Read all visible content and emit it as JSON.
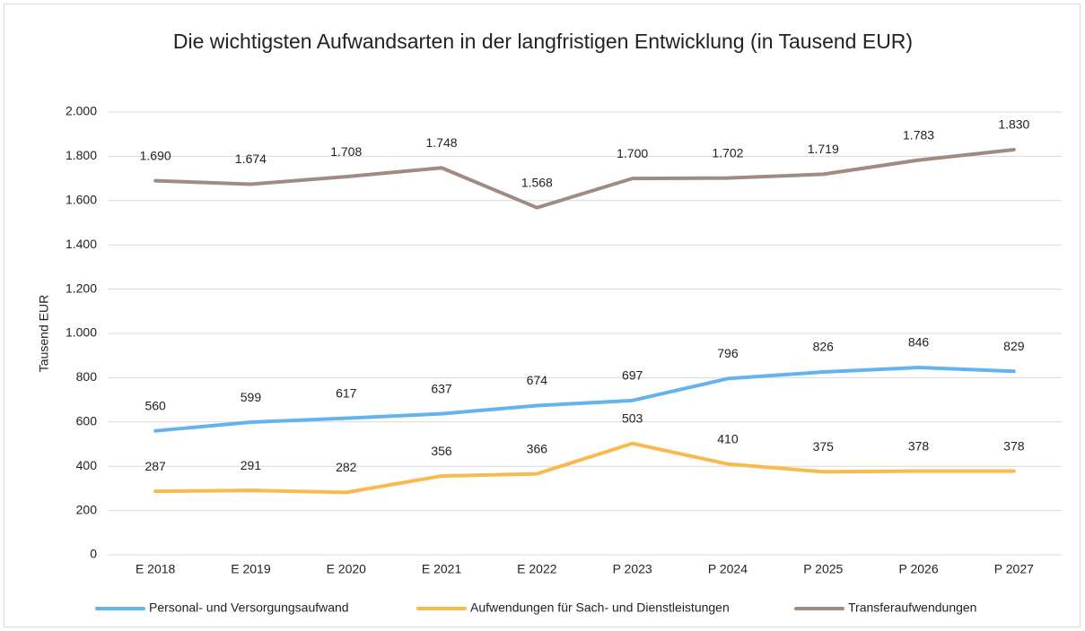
{
  "chart_data": {
    "type": "line",
    "title": "Die wichtigsten Aufwandsarten in der langfristigen Entwicklung (in Tausend EUR)",
    "y_label": "Tausend EUR",
    "categories": [
      "E 2018",
      "E 2019",
      "E 2020",
      "E 2021",
      "E 2022",
      "P 2023",
      "P 2024",
      "P 2025",
      "P 2026",
      "P 2027"
    ],
    "series": [
      {
        "name": "Personal- und Versorgungsaufwand",
        "color": "#63b3ef",
        "values": [
          560,
          599,
          617,
          637,
          674,
          697,
          796,
          826,
          846,
          829
        ]
      },
      {
        "name": "Aufwendungen für Sach- und Dienstleistungen",
        "color": "#f9b94f",
        "values": [
          287,
          291,
          282,
          356,
          366,
          503,
          410,
          375,
          378,
          378
        ]
      },
      {
        "name": "Transferaufwendungen",
        "color": "#a08b80",
        "values": [
          1690,
          1674,
          1708,
          1748,
          1568,
          1700,
          1702,
          1719,
          1783,
          1830
        ],
        "value_labels": [
          "1.690",
          "1.674",
          "1.708",
          "1.748",
          "1.568",
          "1.700",
          "1.702",
          "1.719",
          "1.783",
          "1.830"
        ]
      }
    ],
    "ylim": [
      0,
      2000
    ],
    "yticks": [
      0,
      200,
      400,
      600,
      800,
      {
        "value": 1000,
        "label": "1.000"
      },
      {
        "value": 1200,
        "label": "1.200"
      },
      {
        "value": 1400,
        "label": "1.400"
      },
      {
        "value": 1600,
        "label": "1.600"
      },
      {
        "value": 1800,
        "label": "1.800"
      },
      {
        "value": 2000,
        "label": "2.000"
      }
    ],
    "grid": true,
    "legend": "bottom"
  }
}
